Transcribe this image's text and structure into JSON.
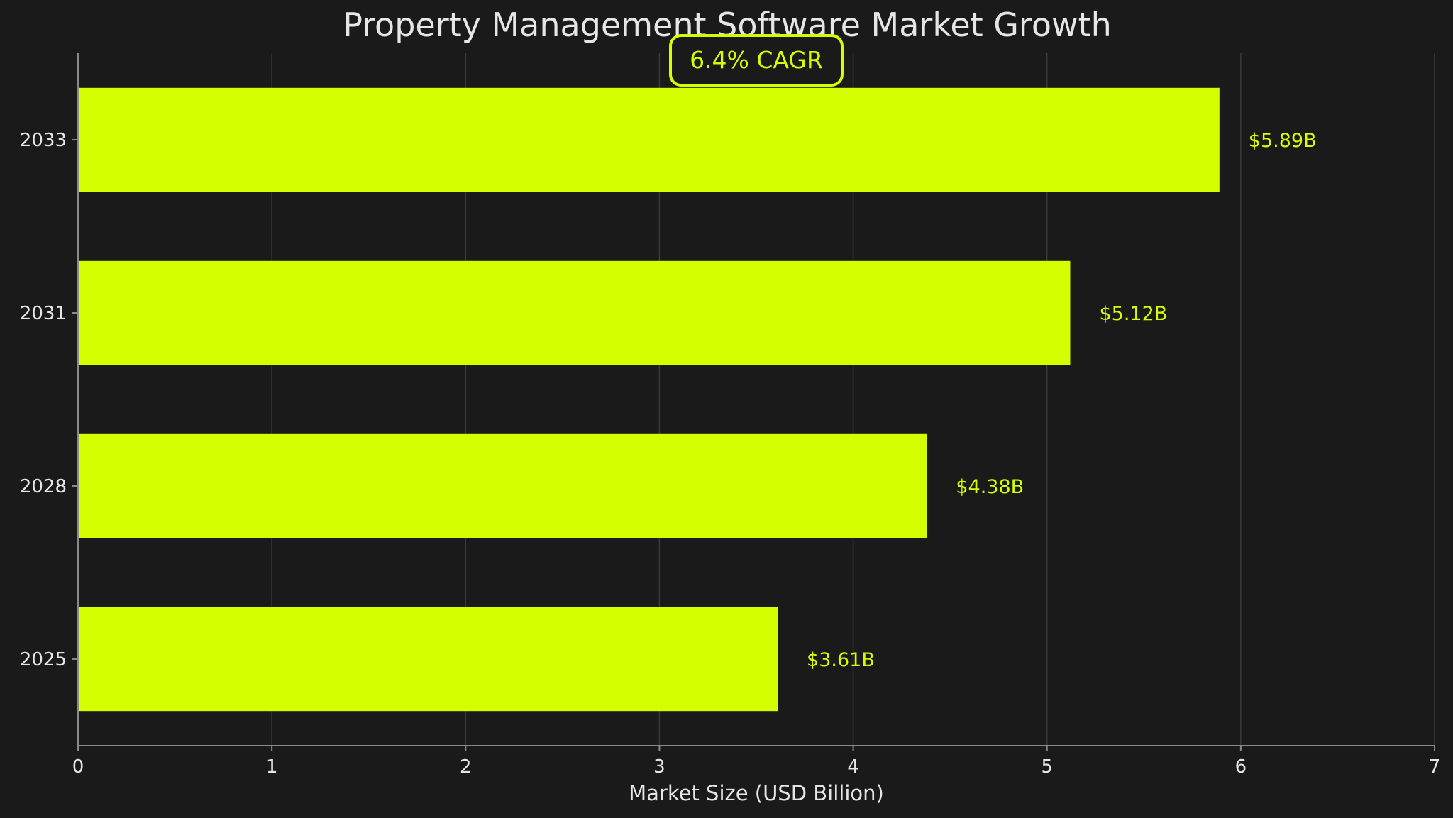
{
  "chart_data": {
    "type": "bar",
    "orientation": "horizontal",
    "title": "Property Management Software Market Growth",
    "xlabel": "Market Size (USD Billion)",
    "ylabel": "",
    "categories": [
      "2025",
      "2028",
      "2031",
      "2033"
    ],
    "values": [
      3.61,
      4.38,
      5.12,
      5.89
    ],
    "data_labels": [
      "$3.61B",
      "$4.38B",
      "$5.12B",
      "$5.89B"
    ],
    "xlim": [
      0,
      7
    ],
    "xticks": [
      0,
      1,
      2,
      3,
      4,
      5,
      6,
      7
    ],
    "grid": "vertical",
    "legend": "none",
    "annotation": {
      "text": "6.4% CAGR",
      "position": "top-center"
    },
    "colors": {
      "background": "#1a1a1a",
      "bar": "#d4ff00",
      "data_label": "#d4ff00",
      "text": "#e6e6e6",
      "grid": "#3a3a3a",
      "axis": "#8a8a8a"
    }
  }
}
